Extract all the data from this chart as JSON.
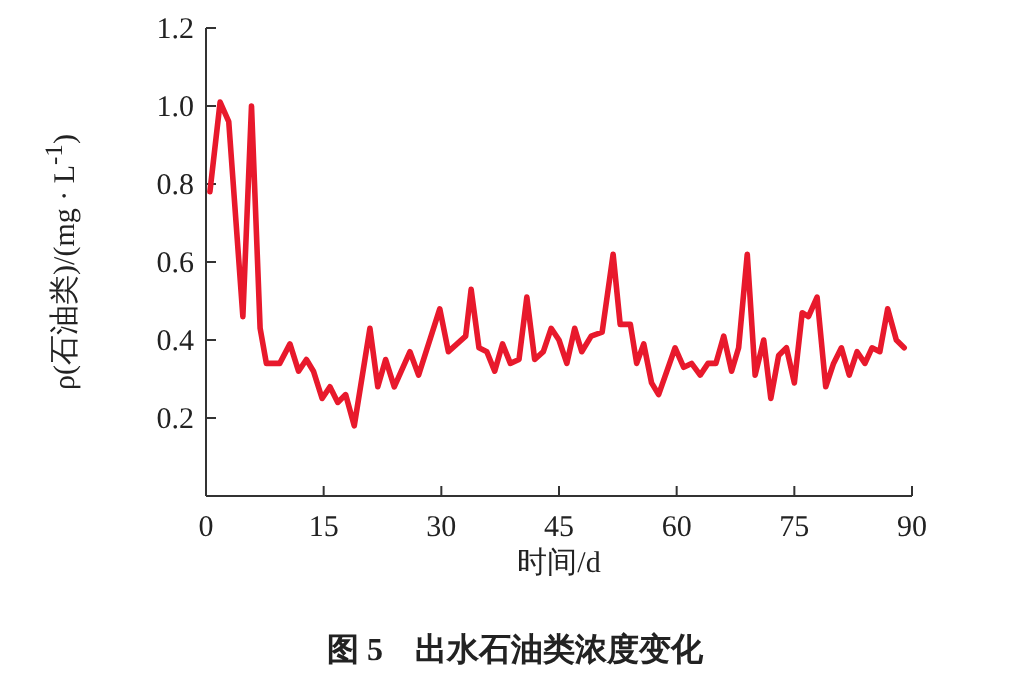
{
  "chart_data": {
    "type": "line",
    "title": "图 5　出水石油类浓度变化",
    "xlabel": "时间/d",
    "ylabel": "ρ(石油类)/(mg · L$^{-1}$)",
    "color": "#e8192c",
    "marker": "none",
    "line_style": "solid",
    "grid": false,
    "xlim": [
      0,
      90
    ],
    "xticks": [
      0,
      15,
      30,
      45,
      60,
      75,
      90
    ],
    "ylim": [
      0,
      1.2
    ],
    "yticks": [
      {
        "value": 0,
        "label": null
      },
      0.2,
      {
        "value": 0.4,
        "label": "0.4"
      },
      0.6,
      0.8,
      {
        "value": 1.0,
        "label": "1.0"
      },
      1.2
    ],
    "x": [
      0.5,
      1.8,
      2.9,
      4.7,
      5.8,
      6.9,
      7.7,
      9.4,
      10.7,
      11.8,
      12.8,
      13.7,
      14.8,
      15.8,
      16.8,
      17.8,
      18.9,
      20.9,
      21.9,
      22.9,
      24.0,
      26.0,
      27.1,
      29.8,
      30.9,
      33.1,
      33.8,
      34.8,
      35.8,
      36.8,
      37.8,
      38.8,
      39.9,
      40.9,
      41.9,
      43.0,
      44.0,
      45.0,
      46.0,
      47.0,
      47.9,
      49.1,
      50.5,
      51.9,
      52.8,
      54.1,
      54.9,
      55.8,
      56.8,
      57.7,
      59.8,
      60.9,
      61.9,
      63.0,
      64.0,
      65.0,
      66.0,
      67.0,
      67.9,
      69.0,
      70.0,
      71.1,
      72.0,
      73.0,
      74.0,
      75.0,
      76.0,
      76.8,
      77.9,
      79.0,
      80.0,
      81.0,
      82.0,
      83.0,
      84.0,
      84.9,
      85.9,
      86.9,
      88.0,
      89.0
    ],
    "values": [
      0.78,
      1.01,
      0.96,
      0.46,
      1.0,
      0.43,
      0.34,
      0.34,
      0.39,
      0.32,
      0.35,
      0.32,
      0.25,
      0.28,
      0.24,
      0.26,
      0.18,
      0.43,
      0.28,
      0.35,
      0.28,
      0.37,
      0.31,
      0.48,
      0.37,
      0.41,
      0.53,
      0.38,
      0.37,
      0.32,
      0.39,
      0.34,
      0.35,
      0.51,
      0.35,
      0.37,
      0.43,
      0.4,
      0.34,
      0.43,
      0.37,
      0.41,
      0.42,
      0.62,
      0.44,
      0.44,
      0.34,
      0.39,
      0.29,
      0.26,
      0.38,
      0.33,
      0.34,
      0.31,
      0.34,
      0.34,
      0.41,
      0.32,
      0.38,
      0.62,
      0.31,
      0.4,
      0.25,
      0.36,
      0.38,
      0.29,
      0.47,
      0.46,
      0.51,
      0.28,
      0.34,
      0.38,
      0.31,
      0.37,
      0.34,
      0.38,
      0.37,
      0.48,
      0.4,
      0.38
    ]
  }
}
